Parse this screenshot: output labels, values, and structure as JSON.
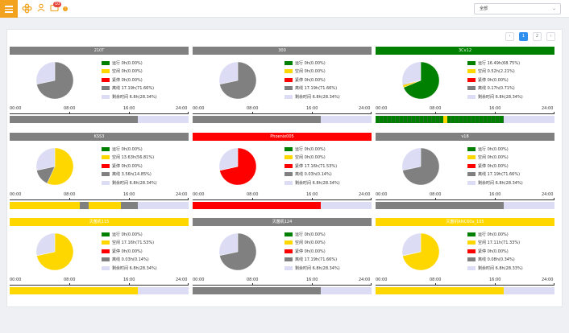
{
  "topbar": {
    "message_badge": "10",
    "filter_value": "全部"
  },
  "pagination": {
    "pages": [
      "1",
      "2"
    ],
    "current": "1",
    "prev": "‹",
    "next": "›"
  },
  "colors": {
    "running": "#008000",
    "idle": "#ffd700",
    "alarm": "#ff0000",
    "offline": "#808080",
    "unproduced": "#dcdcf5",
    "header_default": "#808080"
  },
  "axis": {
    "labels": [
      "00:00",
      "08:00",
      "16:00",
      "24:00"
    ]
  },
  "machines": [
    {
      "name": "210T",
      "status": "offline",
      "pie": [
        0,
        0,
        0,
        71.66,
        28.34
      ],
      "legend": [
        "运行 0h(0.00%)",
        "空闲 0h(0.00%)",
        "紧停 0h(0.00%)",
        "离线 17.19h(71.66%)",
        "剩余时间 6.8h(28.34%)"
      ],
      "timeline": [
        [
          "offline",
          0,
          71.66
        ],
        [
          "unproduced",
          71.66,
          100
        ]
      ]
    },
    {
      "name": "300",
      "status": "offline",
      "pie": [
        0,
        0,
        0,
        71.66,
        28.34
      ],
      "legend": [
        "运行 0h(0.00%)",
        "空闲 0h(0.00%)",
        "紧停 0h(0.00%)",
        "离线 17.19h(71.66%)",
        "剩余时间 6.8h(28.34%)"
      ],
      "timeline": [
        [
          "offline",
          0,
          71.66
        ],
        [
          "unproduced",
          71.66,
          100
        ]
      ]
    },
    {
      "name": "3Cv12",
      "status": "running",
      "pie": [
        68.75,
        2.21,
        0,
        0.71,
        28.34
      ],
      "legend": [
        "运行 16.49h(68.75%)",
        "空闲 0.52h(2.21%)",
        "紧停 0h(0.00%)",
        "离线 0.17h(0.71%)",
        "剩余时间 6.8h(28.34%)"
      ],
      "timeline": [
        [
          "running",
          0,
          38
        ],
        [
          "idle",
          38,
          40
        ],
        [
          "running",
          40,
          71.66
        ],
        [
          "unproduced",
          71.66,
          100
        ]
      ]
    },
    {
      "name": "KSS3",
      "status": "offline",
      "pie": [
        0,
        56.81,
        0,
        14.85,
        28.34
      ],
      "legend": [
        "运行 0h(0.00%)",
        "空闲 13.63h(56.81%)",
        "紧停 0h(0.00%)",
        "离线 3.56h(14.85%)",
        "剩余时间 6.8h(28.34%)"
      ],
      "timeline": [
        [
          "idle",
          0,
          39
        ],
        [
          "offline",
          39,
          44
        ],
        [
          "idle",
          44,
          62
        ],
        [
          "offline",
          62,
          71.66
        ],
        [
          "unproduced",
          71.66,
          100
        ]
      ]
    },
    {
      "name": "Phoenix005",
      "status": "alarm",
      "pie": [
        0,
        0,
        71.53,
        0.14,
        28.34
      ],
      "legend": [
        "运行 0h(0.00%)",
        "空闲 0h(0.00%)",
        "紧停 17.16h(71.53%)",
        "离线 0.03h(0.14%)",
        "剩余时间 6.8h(28.34%)"
      ],
      "timeline": [
        [
          "alarm",
          0,
          71.66
        ],
        [
          "unproduced",
          71.66,
          100
        ]
      ]
    },
    {
      "name": "v18",
      "status": "offline",
      "pie": [
        0,
        0,
        0,
        71.66,
        28.34
      ],
      "legend": [
        "运行 0h(0.00%)",
        "空闲 0h(0.00%)",
        "紧停 0h(0.00%)",
        "离线 17.19h(71.66%)",
        "剩余时间 6.8h(28.34%)"
      ],
      "timeline": [
        [
          "offline",
          0,
          71.66
        ],
        [
          "unproduced",
          71.66,
          100
        ]
      ]
    },
    {
      "name": "灭菌机115",
      "status": "idle",
      "pie": [
        0,
        71.53,
        0,
        0.14,
        28.34
      ],
      "legend": [
        "运行 0h(0.00%)",
        "空闲 17.16h(71.53%)",
        "紧停 0h(0.00%)",
        "离线 0.03h(0.14%)",
        "剩余时间 6.8h(28.34%)"
      ],
      "timeline": [
        [
          "idle",
          0,
          71.66
        ],
        [
          "unproduced",
          71.66,
          100
        ]
      ]
    },
    {
      "name": "灭菌机124",
      "status": "offline",
      "pie": [
        0,
        0,
        0,
        71.66,
        28.34
      ],
      "legend": [
        "运行 0h(0.00%)",
        "空闲 0h(0.00%)",
        "紧停 0h(0.00%)",
        "离线 17.19h(71.66%)",
        "剩余时间 6.8h(28.34%)"
      ],
      "timeline": [
        [
          "offline",
          0,
          71.66
        ],
        [
          "unproduced",
          71.66,
          100
        ]
      ]
    },
    {
      "name": "灭菌机RNC60a_105",
      "status": "idle",
      "pie": [
        0,
        71.33,
        0,
        0.34,
        28.33
      ],
      "legend": [
        "运行 0h(0.00%)",
        "空闲 17.11h(71.33%)",
        "紧停 0h(0.00%)",
        "离线 0.08h(0.34%)",
        "剩余时间 6.8h(28.33%)"
      ],
      "timeline": [
        [
          "idle",
          0,
          71.66
        ],
        [
          "unproduced",
          71.66,
          100
        ]
      ]
    }
  ]
}
